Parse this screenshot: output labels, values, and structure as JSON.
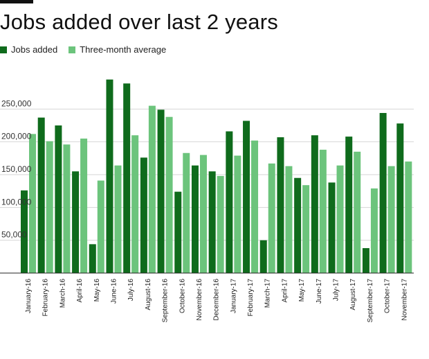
{
  "title": "Jobs added over last 2 years",
  "legend": [
    {
      "name": "Jobs added",
      "color": "#0f6b1c"
    },
    {
      "name": "Three-month average",
      "color": "#6cc47c"
    }
  ],
  "chart_data": {
    "type": "bar",
    "title": "Jobs added over last 2 years",
    "xlabel": "",
    "ylabel": "",
    "ylim": [
      0,
      300000
    ],
    "yticks": [
      50000,
      100000,
      150000,
      200000,
      250000
    ],
    "ytick_labels": [
      "50,000",
      "100,000",
      "150,000",
      "200,000",
      "250,000"
    ],
    "grid": true,
    "legend_position": "top-left",
    "categories": [
      "January-16",
      "February-16",
      "March-16",
      "April-16",
      "May-16",
      "June-16",
      "July-16",
      "August-16",
      "September-16",
      "October-16",
      "November-16",
      "December-16",
      "January-17",
      "February-17",
      "March-17",
      "April-17",
      "May-17",
      "June-17",
      "July-17",
      "August-17",
      "September-17",
      "October-17",
      "November-17"
    ],
    "series": [
      {
        "name": "Jobs added",
        "color": "#0f6b1c",
        "values": [
          126000,
          237000,
          225000,
          155000,
          44000,
          295000,
          289000,
          176000,
          249000,
          124000,
          164000,
          155000,
          216000,
          232000,
          50000,
          207000,
          145000,
          210000,
          138000,
          208000,
          38000,
          244000,
          228000
        ]
      },
      {
        "name": "Three-month average",
        "color": "#6cc47c",
        "values": [
          212000,
          201000,
          196000,
          205000,
          141000,
          164000,
          210000,
          255000,
          238000,
          183000,
          180000,
          148000,
          179000,
          202000,
          167000,
          163000,
          134000,
          188000,
          164000,
          185000,
          129000,
          163000,
          170000
        ]
      }
    ]
  }
}
